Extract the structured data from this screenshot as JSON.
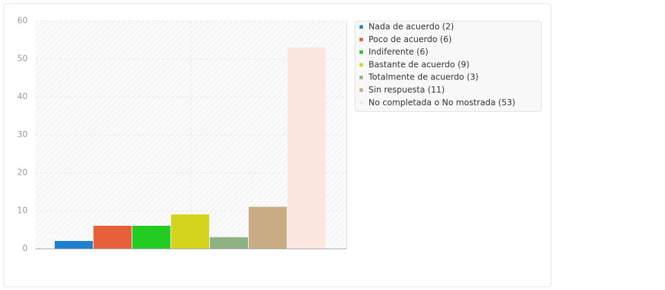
{
  "chart_data": {
    "type": "bar",
    "categories": [
      "Nada de acuerdo (2)",
      "Poco de acuerdo (6)",
      "Indiferente (6)",
      "Bastante de acuerdo (9)",
      "Totalmente de acuerdo (3)",
      "Sin respuesta (11)",
      "No completada o No mostrada (53)"
    ],
    "values": [
      2,
      6,
      6,
      9,
      3,
      11,
      53
    ],
    "colors": [
      "#1f80cf",
      "#e8603a",
      "#22cc22",
      "#d4d41e",
      "#8db383",
      "#c9ab84",
      "#fbe7df"
    ],
    "ylim": [
      0,
      60
    ],
    "yticks": [
      0,
      10,
      20,
      30,
      40,
      50,
      60
    ],
    "grid": true,
    "legend": "right"
  }
}
